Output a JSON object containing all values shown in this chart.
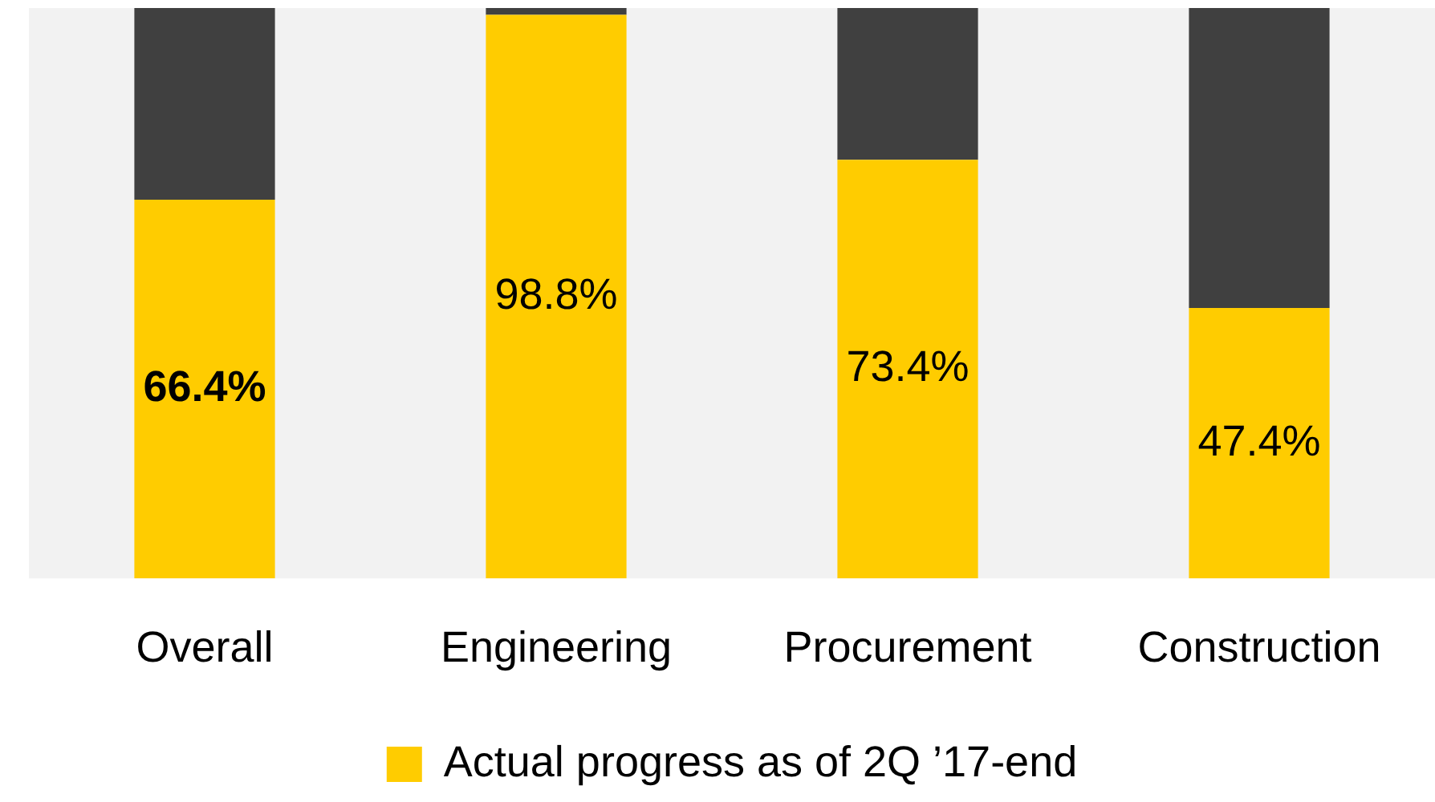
{
  "chart_data": {
    "type": "bar",
    "stacked": true,
    "categories": [
      "Overall",
      "Engineering",
      "Procurement",
      "Construction"
    ],
    "series": [
      {
        "name": "Actual progress as of 2Q ’17-end",
        "color": "#ffcc00",
        "values": [
          66.4,
          98.8,
          73.4,
          47.4
        ],
        "value_labels": [
          "66.4%",
          "98.8%",
          "73.4%",
          "47.4%"
        ]
      },
      {
        "color": "#404040",
        "values": [
          33.6,
          1.2,
          26.6,
          52.6
        ]
      }
    ],
    "ylim": [
      0,
      100
    ],
    "tick_labels": "x",
    "grid": false,
    "legend": "bottom"
  }
}
